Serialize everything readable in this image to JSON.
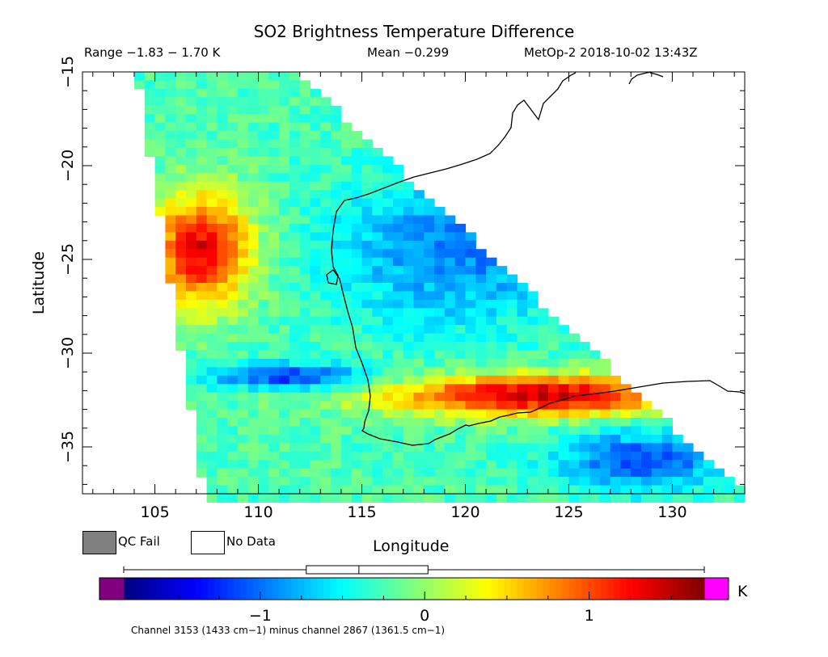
{
  "header": {
    "title": "SO2 Brightness Temperature Difference",
    "range_text": "Range −1.83 − 1.70 K",
    "mean_text": "Mean −0.299",
    "satellite_text": "MetOp-2 2018-10-02 13:43Z"
  },
  "legend": {
    "qc_fail_label": "QC Fail",
    "qc_fail_color": "#808080",
    "no_data_label": "No Data",
    "no_data_color": "#ffffff"
  },
  "colorbar": {
    "unit": "K",
    "min": -1.83,
    "max": 1.7,
    "ticks": [
      {
        "value": -1,
        "label": "−1"
      },
      {
        "value": 0,
        "label": "0"
      },
      {
        "value": 1,
        "label": "1"
      }
    ],
    "under_color": "#800080",
    "over_color": "#ff00ff",
    "colors": [
      "#00007f",
      "#0000ff",
      "#007fff",
      "#00ffff",
      "#7fff7f",
      "#ffff00",
      "#ff7f00",
      "#ff0000",
      "#7f0000"
    ],
    "boxplot": {
      "whisker_low": -1.83,
      "q1": -0.72,
      "median": -0.4,
      "q3": 0.02,
      "whisker_high": 1.7
    }
  },
  "footnote": "Channel 3153 (1433 cm−1) minus channel 2867 (1361.5 cm−1)",
  "chart_data": {
    "type": "heatmap",
    "title": "SO2 Brightness Temperature Difference",
    "xlabel": "Longitude",
    "ylabel": "Latitude",
    "xlim": [
      101.5,
      133.5
    ],
    "ylim": [
      -37.5,
      -15
    ],
    "xticks": [
      105,
      110,
      115,
      120,
      125,
      130
    ],
    "yticks": [
      -15,
      -20,
      -25,
      -30,
      -35
    ],
    "value_range": [
      -1.83,
      1.7
    ],
    "mean": -0.299,
    "units": "K",
    "grid": false,
    "swath_corners": [
      [
        104.1,
        -15
      ],
      [
        111.8,
        -15
      ],
      [
        133.5,
        -37.5
      ],
      [
        107.4,
        -37.5
      ]
    ],
    "features": [
      {
        "description": "high positive band",
        "lon": [
          115,
          132
        ],
        "lat": [
          -33.5,
          -31
        ],
        "value": 1.4
      },
      {
        "description": "high positive region",
        "lon": [
          104.5,
          110
        ],
        "lat": [
          -28,
          -21
        ],
        "value": 1.3
      },
      {
        "description": "negative band",
        "lon": [
          107,
          116
        ],
        "lat": [
          -32,
          -30.5
        ],
        "value": -1.3
      },
      {
        "description": "negative region",
        "lon": [
          113,
          126
        ],
        "lat": [
          -29,
          -20
        ],
        "value": -1.0
      },
      {
        "description": "negative region",
        "lon": [
          124,
          133
        ],
        "lat": [
          -37.5,
          -34
        ],
        "value": -1.2
      }
    ],
    "coastline": [
      [
        131.7,
        -14.9
      ],
      [
        132.0,
        -15.0
      ],
      [
        132.5,
        -15.3
      ],
      [
        133.0,
        -15.2
      ],
      [
        133.5,
        -15.2
      ]
    ]
  }
}
